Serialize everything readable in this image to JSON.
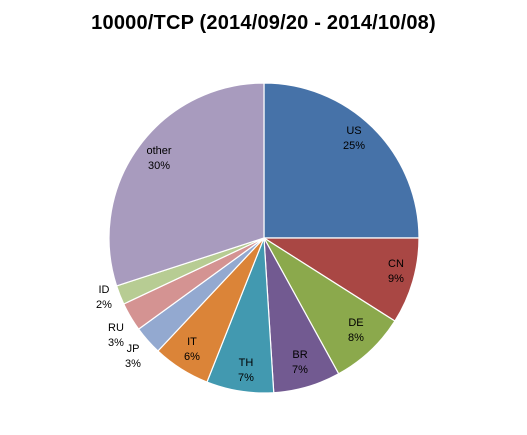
{
  "chart_data": {
    "type": "pie",
    "title": "10000/TCP (2014/09/20 - 2014/10/08)",
    "slices": [
      {
        "label": "US",
        "value": 25,
        "display": "25%",
        "color": "#4672A8"
      },
      {
        "label": "CN",
        "value": 9,
        "display": "9%",
        "color": "#A94744"
      },
      {
        "label": "DE",
        "value": 8,
        "display": "8%",
        "color": "#8BA94C"
      },
      {
        "label": "BR",
        "value": 7,
        "display": "7%",
        "color": "#725A91"
      },
      {
        "label": "TH",
        "value": 7,
        "display": "7%",
        "color": "#4299B0"
      },
      {
        "label": "IT",
        "value": 6,
        "display": "6%",
        "color": "#DB8438"
      },
      {
        "label": "JP",
        "value": 3,
        "display": "3%",
        "color": "#93A9D0"
      },
      {
        "label": "RU",
        "value": 3,
        "display": "3%",
        "color": "#D49392"
      },
      {
        "label": "ID",
        "value": 2,
        "display": "2%",
        "color": "#B7CC93"
      },
      {
        "label": "other",
        "value": 30,
        "display": "30%",
        "color": "#A89BBE"
      }
    ]
  }
}
